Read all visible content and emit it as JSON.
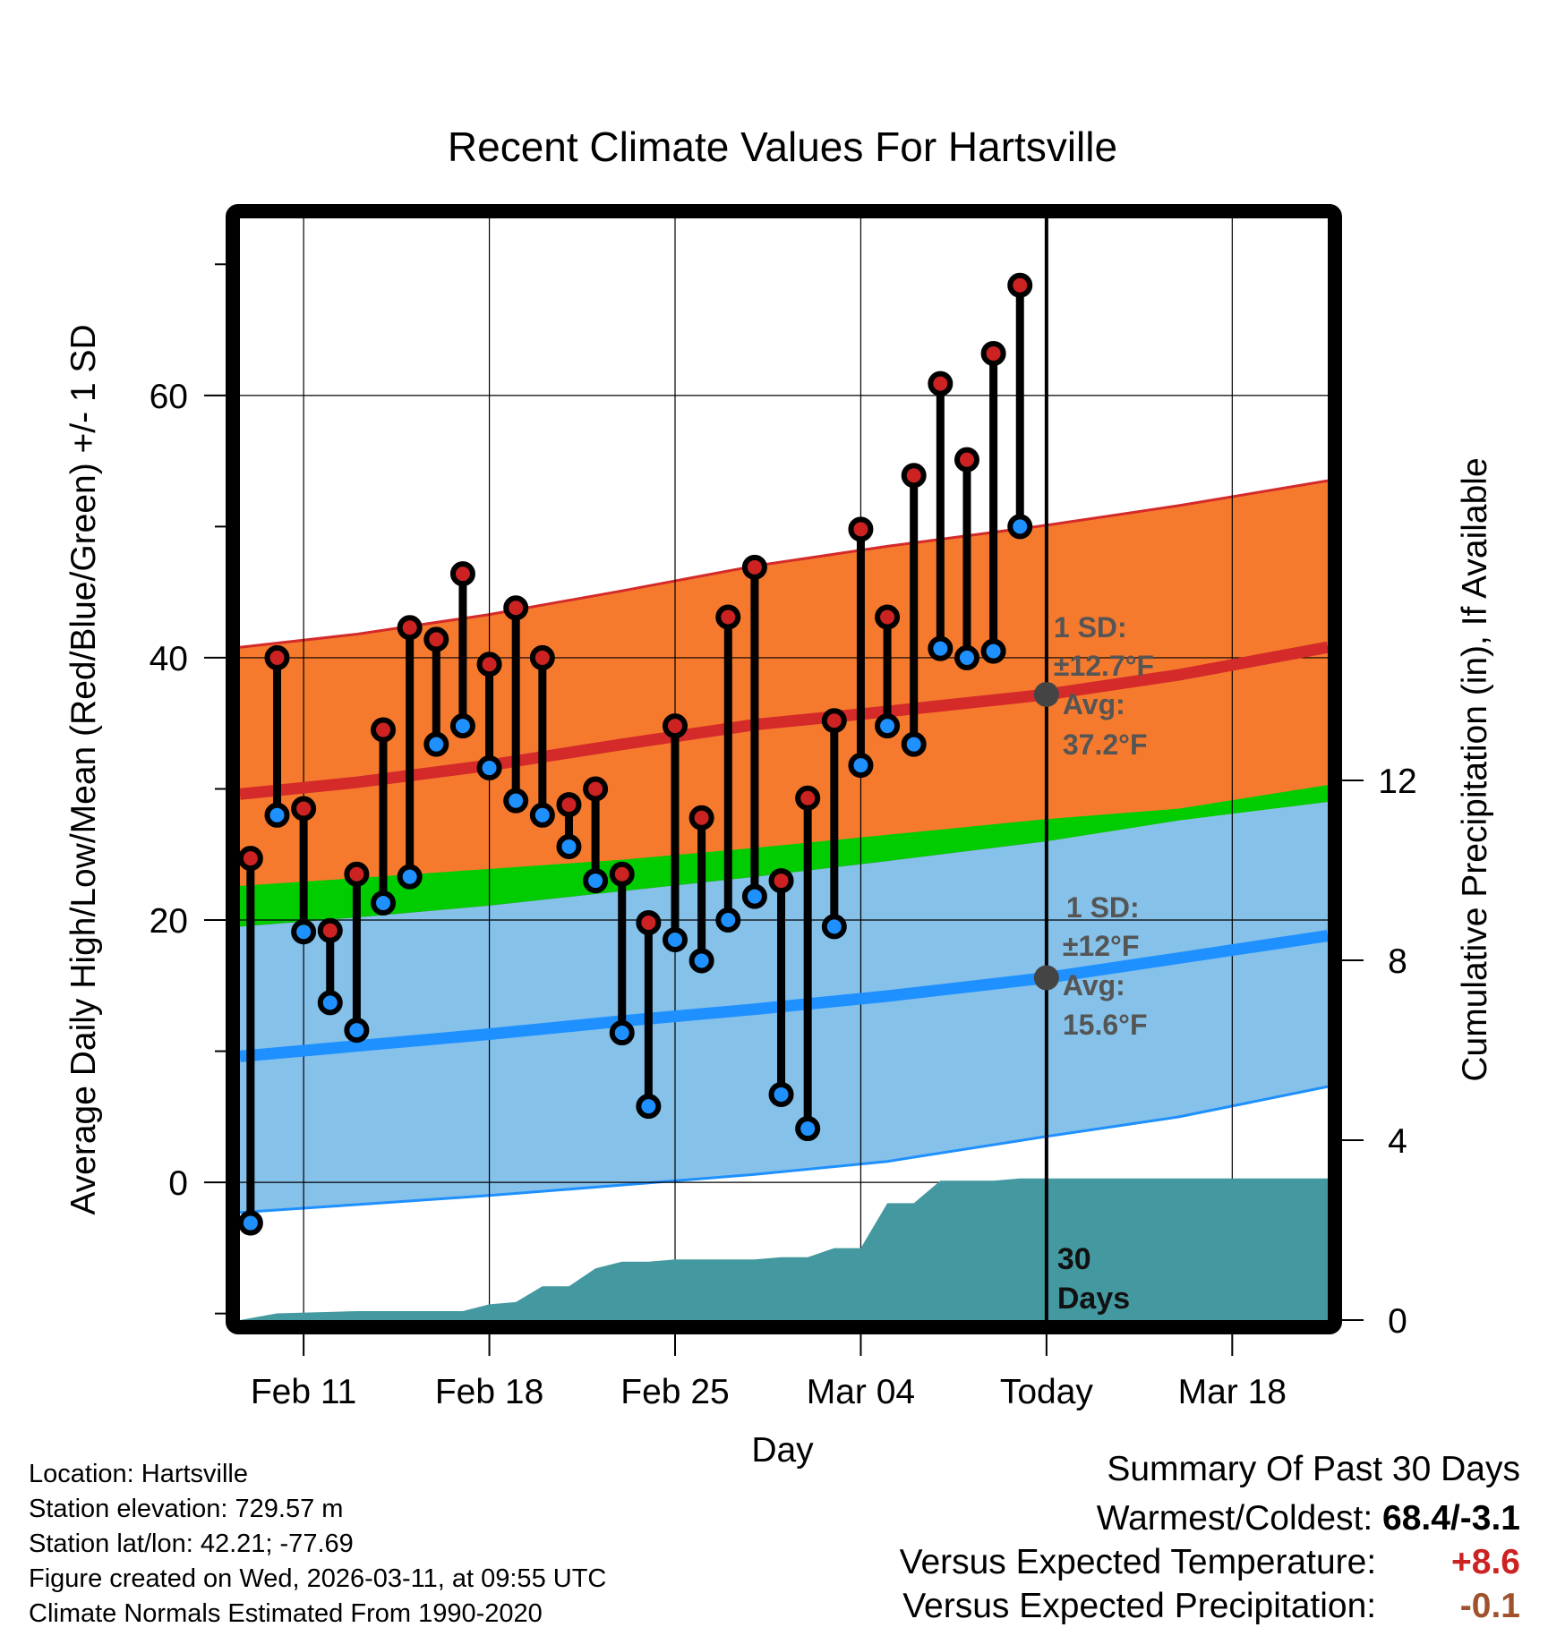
{
  "title": "Recent Climate Values For Hartsville",
  "chart_data": {
    "type": "line",
    "title": "Recent Climate Values For Hartsville",
    "xlabel": "Day",
    "ylabel": "Average Daily High/Low/Mean (Red/Blue/Green) +/- 1 SD",
    "y2label": "Cumulative Precipitation (in), If Available",
    "x_ticks": [
      {
        "day": 3,
        "label": "Feb 11"
      },
      {
        "day": 10,
        "label": "Feb 18"
      },
      {
        "day": 17,
        "label": "Feb 25"
      },
      {
        "day": 24,
        "label": "Mar 04"
      },
      {
        "day": 31,
        "label": "Today"
      },
      {
        "day": 38,
        "label": "Mar 18"
      }
    ],
    "xlim": [
      0.6,
      41.6
    ],
    "ylim": [
      -10.5,
      73.5
    ],
    "y_ticks": [
      0,
      20,
      40,
      60
    ],
    "y_minor_ticks": [
      -10,
      10,
      30,
      50,
      70
    ],
    "y2lim": [
      0,
      24.5
    ],
    "y2_ticks": [
      0,
      4,
      8,
      12
    ],
    "normals_days": [
      0.6,
      5,
      10,
      15,
      20,
      25,
      31,
      36,
      41.6
    ],
    "normal_high": [
      29.6,
      30.5,
      31.8,
      33.4,
      34.9,
      35.9,
      37.2,
      38.7,
      40.8
    ],
    "normal_high_upper": [
      40.8,
      41.8,
      43.3,
      45.1,
      47.0,
      48.5,
      50.1,
      51.6,
      53.5
    ],
    "normal_high_lower": [
      18.6,
      19.3,
      20.3,
      21.5,
      22.8,
      24.2,
      26.0,
      27.6,
      30.3
    ],
    "normal_mean_upper": [
      22.6,
      23.2,
      23.9,
      24.6,
      25.5,
      26.5,
      27.7,
      28.5,
      30.3
    ],
    "normal_mean_lower": [
      19.5,
      20.2,
      21.1,
      22.2,
      23.3,
      24.5,
      26.0,
      27.6,
      29.0
    ],
    "normal_low": [
      9.6,
      10.4,
      11.3,
      12.3,
      13.2,
      14.2,
      15.6,
      17.1,
      18.8
    ],
    "normal_low_upper": [
      21.2,
      21.8,
      22.5,
      23.3,
      24.2,
      25.4,
      26.5,
      27.6,
      29.0
    ],
    "normal_low_lower": [
      -2.3,
      -1.7,
      -1.0,
      -0.2,
      0.6,
      1.6,
      3.5,
      5.0,
      7.3
    ],
    "series": [
      {
        "name": "Daily High",
        "color": "#cc2222",
        "values": [
          24.7,
          40.0,
          28.5,
          19.2,
          23.5,
          34.5,
          42.3,
          41.4,
          46.4,
          39.5,
          43.8,
          40.0,
          28.8,
          30.0,
          23.5,
          19.8,
          34.8,
          27.8,
          43.1,
          46.9,
          23.0,
          29.3,
          35.2,
          49.8,
          43.1,
          53.9,
          60.9,
          55.1,
          63.2,
          68.4
        ]
      },
      {
        "name": "Daily Low",
        "color": "#1e90ff",
        "values": [
          -3.1,
          28.0,
          19.1,
          13.7,
          11.6,
          21.3,
          23.3,
          33.4,
          34.8,
          31.6,
          29.1,
          28.0,
          25.6,
          23.0,
          11.4,
          5.8,
          18.5,
          16.9,
          20.0,
          21.8,
          6.7,
          4.1,
          19.5,
          31.8,
          34.8,
          33.4,
          40.7,
          40.0,
          40.5,
          50.0
        ]
      }
    ],
    "precip_days": [
      0.6,
      2,
      5,
      9,
      10,
      11,
      12,
      13,
      14,
      15,
      16,
      17,
      18,
      19,
      20,
      21,
      22,
      23,
      24,
      25,
      26,
      27,
      28,
      29,
      30,
      31,
      41.6
    ],
    "precip_cum": [
      0,
      0.15,
      0.2,
      0.2,
      0.35,
      0.4,
      0.75,
      0.75,
      1.15,
      1.3,
      1.3,
      1.35,
      1.35,
      1.35,
      1.35,
      1.4,
      1.4,
      1.6,
      1.6,
      2.6,
      2.6,
      3.1,
      3.1,
      3.1,
      3.15,
      3.15,
      3.15
    ],
    "annotations": {
      "high_sd": "1 SD:",
      "high_sd_value": "±12.7°F",
      "high_avg": "Avg:",
      "high_avg_value": "37.2°F",
      "low_sd": "1 SD:",
      "low_sd_value": "±12°F",
      "low_avg": "Avg:",
      "low_avg_value": "15.6°F",
      "window_line1": "30",
      "window_line2": "Days"
    },
    "colors": {
      "high_band": "#f57a2e",
      "high_line": "#d42a2a",
      "high_mean_band": "#9b1212",
      "mean_band": "#00cc00",
      "low_band": "#85c1e9",
      "low_line": "#1e90ff",
      "precip": "#4499a0"
    }
  },
  "footer": {
    "location": "Location: Hartsville",
    "elevation": "Station elevation: 729.57 m",
    "latlon": "Station lat/lon: 42.21; -77.69",
    "created": "Figure created on Wed, 2026-03-11, at 09:55 UTC",
    "normals": "Climate Normals Estimated From 1990-2020"
  },
  "summary": {
    "heading": "Summary Of Past 30 Days",
    "warmest_label": "Warmest/Coldest:",
    "warmest_value": "68.4/-3.1",
    "temp_label": "Versus Expected Temperature:",
    "temp_value": "+8.6",
    "temp_color": "#cc2222",
    "precip_label": "Versus Expected Precipitation:",
    "precip_value": "-0.1",
    "precip_color": "#a0522d"
  }
}
